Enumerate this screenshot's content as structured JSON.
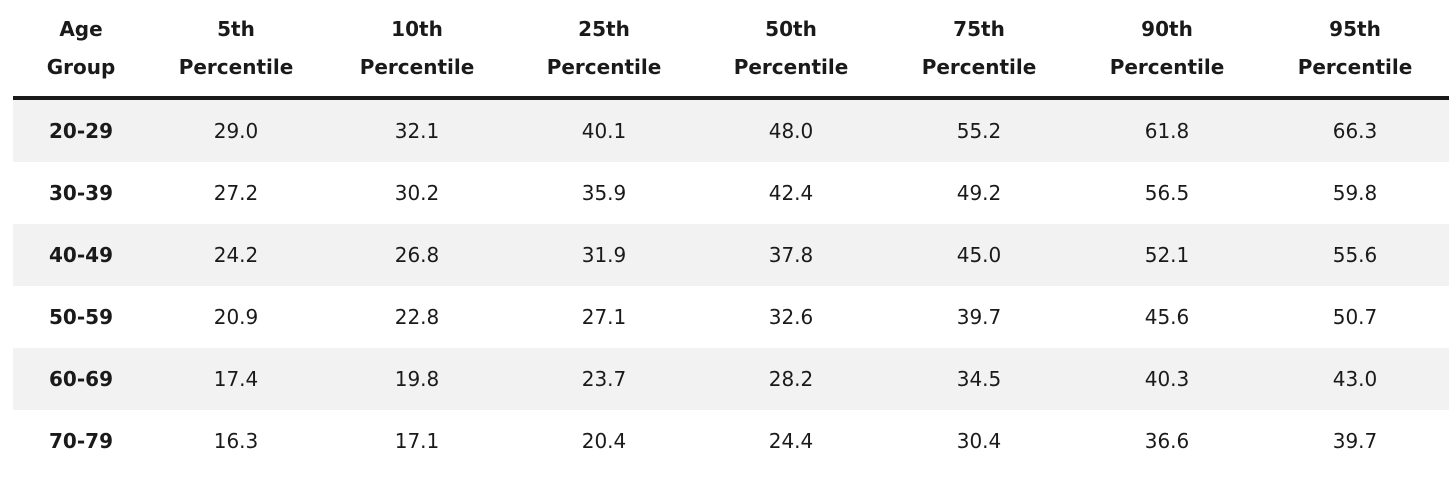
{
  "table": {
    "header": [
      "Age Group",
      "5th Percentile",
      "10th Percentile",
      "25th Percentile",
      "50th Percentile",
      "75th Percentile",
      "90th Percentile",
      "95th Percentile"
    ],
    "rows": [
      [
        "20-29",
        "29.0",
        "32.1",
        "40.1",
        "48.0",
        "55.2",
        "61.8",
        "66.3"
      ],
      [
        "30-39",
        "27.2",
        "30.2",
        "35.9",
        "42.4",
        "49.2",
        "56.5",
        "59.8"
      ],
      [
        "40-49",
        "24.2",
        "26.8",
        "31.9",
        "37.8",
        "45.0",
        "52.1",
        "55.6"
      ],
      [
        "50-59",
        "20.9",
        "22.8",
        "27.1",
        "32.6",
        "39.7",
        "45.6",
        "50.7"
      ],
      [
        "60-69",
        "17.4",
        "19.8",
        "23.7",
        "28.2",
        "34.5",
        "40.3",
        "43.0"
      ],
      [
        "70-79",
        "16.3",
        "17.1",
        "20.4",
        "24.4",
        "30.4",
        "36.6",
        "39.7"
      ]
    ]
  }
}
